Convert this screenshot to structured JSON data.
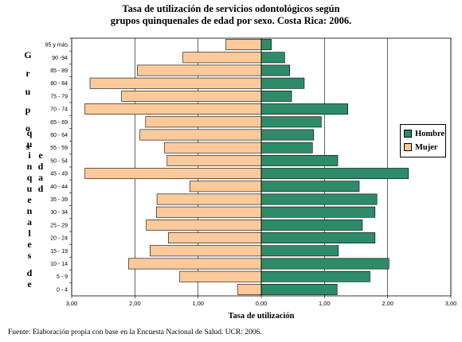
{
  "chart_data": {
    "type": "bar",
    "orientation": "horizontal",
    "title_line1": "Tasa de utilización de servicios odontológicos según",
    "title_line2": "grupos quinquenales de edad por sexo. Costa Rica: 2006.",
    "xlabel": "Tasa de utilización",
    "ylabel_words": [
      "Grupos",
      "quinquenales",
      "de",
      "edad"
    ],
    "categories": [
      "95 y más",
      "90 -94",
      "85 - 89",
      "80 - 84",
      "75 - 79",
      "70 - 74",
      "65 - 69",
      "60 - 64",
      "55 - 59",
      "50 - 54",
      "45 - 49",
      "40 - 44",
      "35 - 39",
      "30 - 34",
      "25 - 29",
      "20 - 24",
      "15 - 19",
      "10 - 14",
      "5 - 9",
      "0 - 4"
    ],
    "series": [
      {
        "name": "Hombre",
        "color": "#2e8b6a",
        "values": [
          0.16,
          0.37,
          0.45,
          0.68,
          0.48,
          1.37,
          0.95,
          0.83,
          0.81,
          1.21,
          2.33,
          1.55,
          1.83,
          1.8,
          1.6,
          1.8,
          1.22,
          2.02,
          1.72,
          1.2
        ]
      },
      {
        "name": "Mujer",
        "color": "#fcc99b",
        "values": [
          0.56,
          1.24,
          1.96,
          2.71,
          2.21,
          2.79,
          1.83,
          1.92,
          1.53,
          1.49,
          2.79,
          1.13,
          1.65,
          1.66,
          1.82,
          1.47,
          1.76,
          2.1,
          1.29,
          0.37
        ]
      }
    ],
    "xlim": [
      -3,
      3
    ],
    "xticks": [
      "3,00",
      "2,00",
      "1,00",
      "0,00",
      "1,00",
      "2,00",
      "3,00"
    ],
    "grid": true,
    "legend_position": "right"
  },
  "source": "Fuente: Elaboración propia con base en la Encuesta Nacional de Salud. UCR: 2006."
}
